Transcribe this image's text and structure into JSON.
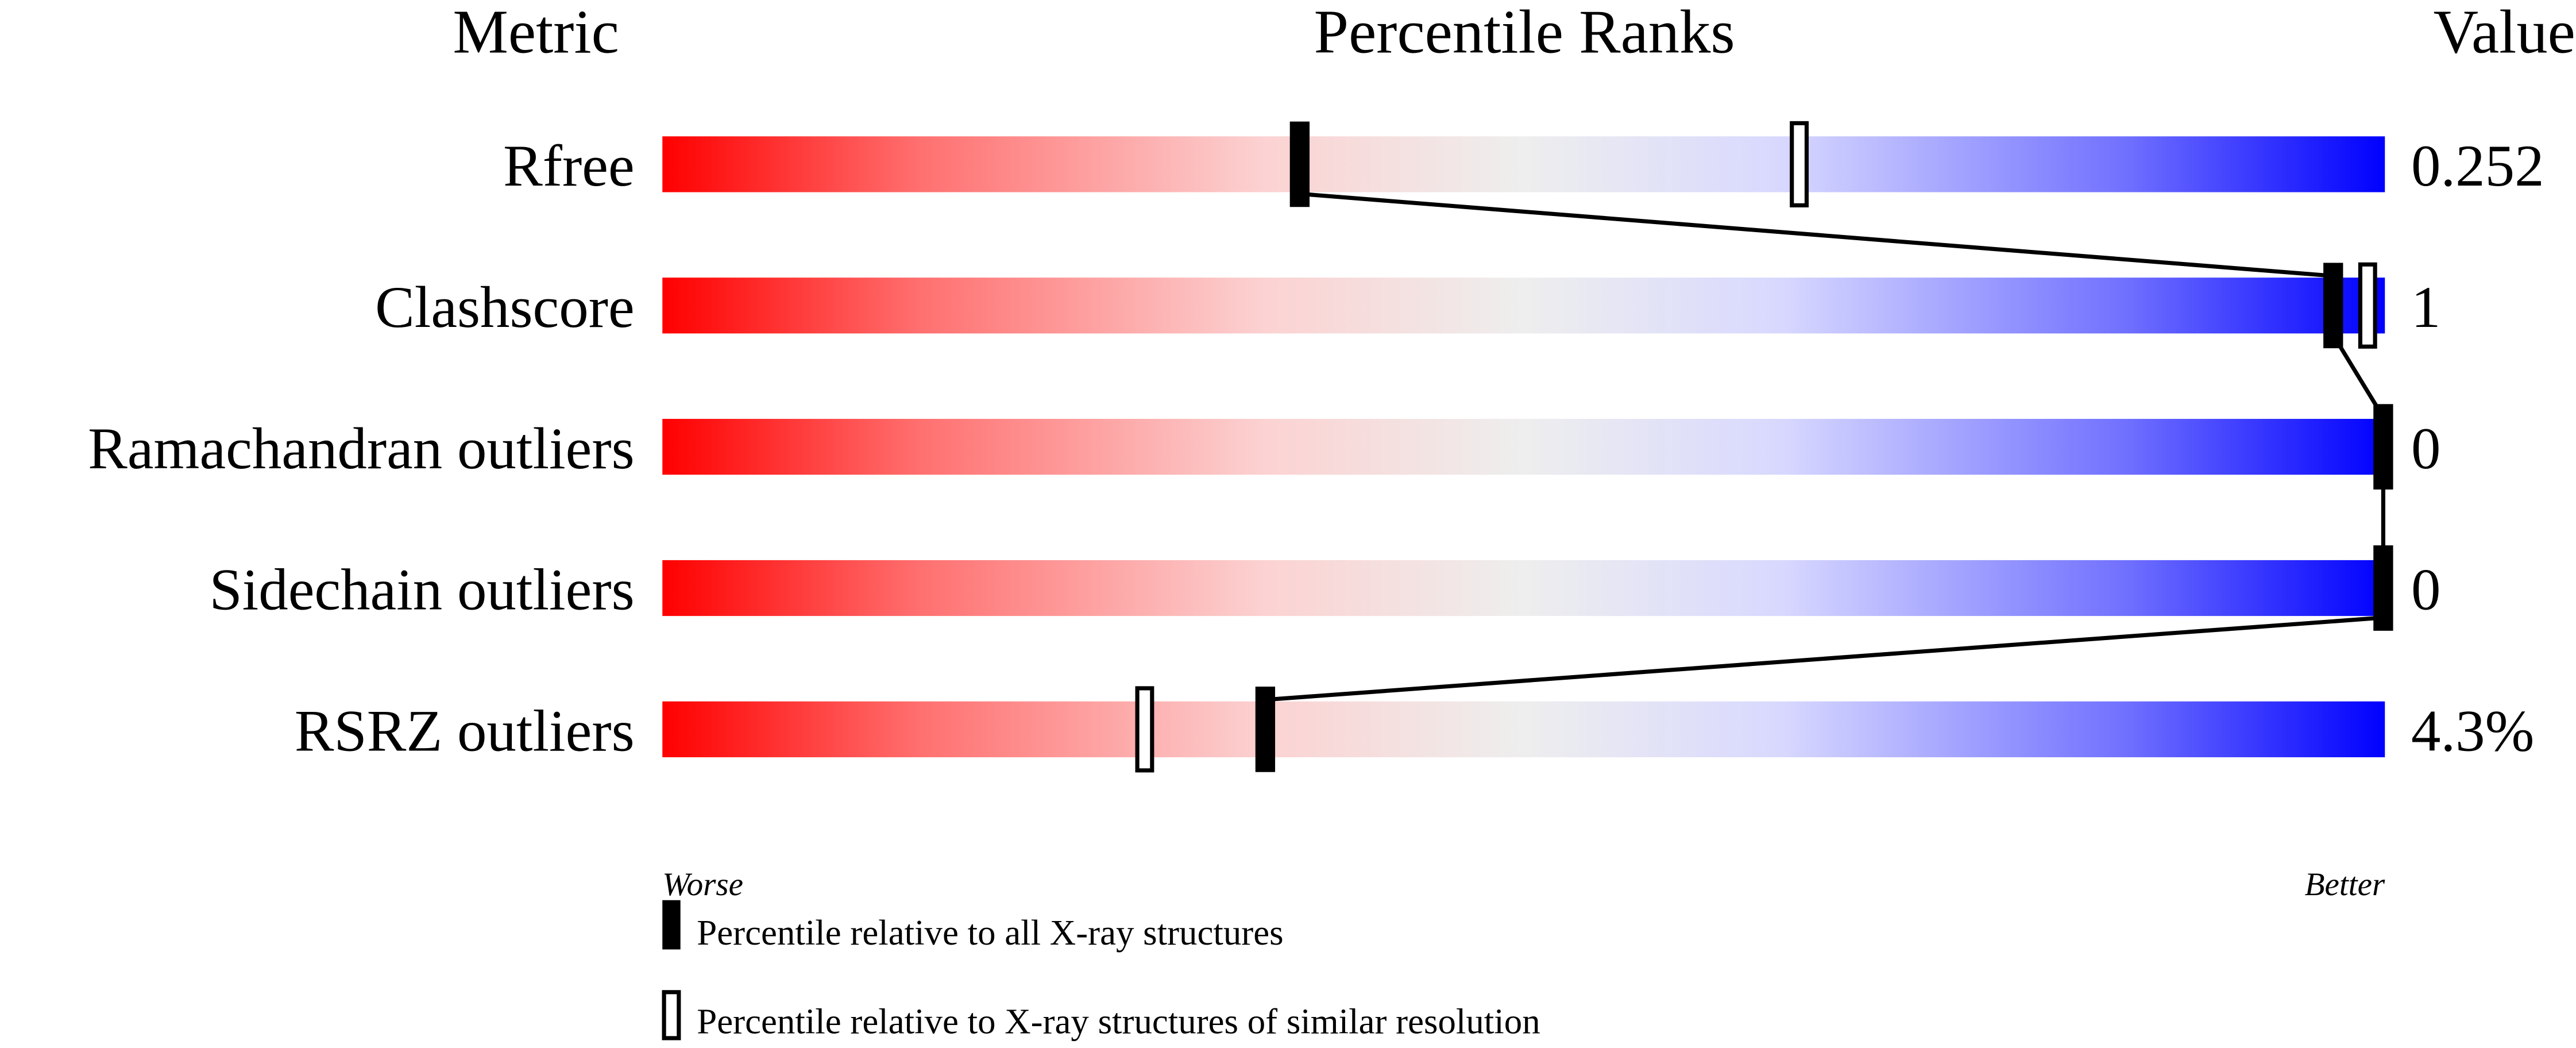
{
  "chart_data": {
    "type": "percentile-slider",
    "headers": {
      "metric": "Metric",
      "ranks": "Percentile Ranks",
      "value": "Value"
    },
    "xlim": [
      0,
      100
    ],
    "axis_labels": {
      "left": "Worse",
      "right": "Better"
    },
    "colors": {
      "worse": "#ff0000",
      "middle": "#eeeeee",
      "better": "#0000ff",
      "marker": "#000000"
    },
    "rows": [
      {
        "metric": "Rfree",
        "value": "0.252",
        "percentile_all": 37,
        "percentile_similar": 66
      },
      {
        "metric": "Clashscore",
        "value": "1",
        "percentile_all": 97,
        "percentile_similar": 99
      },
      {
        "metric": "Ramachandran outliers",
        "value": "0",
        "percentile_all": 100,
        "percentile_similar": 100
      },
      {
        "metric": "Sidechain outliers",
        "value": "0",
        "percentile_all": 100,
        "percentile_similar": 100
      },
      {
        "metric": "RSRZ outliers",
        "value": "4.3%",
        "percentile_all": 35,
        "percentile_similar": 28
      }
    ],
    "legend": [
      {
        "marker": "filled",
        "label": "Percentile relative to all X-ray structures"
      },
      {
        "marker": "open",
        "label": "Percentile relative to X-ray structures of similar resolution"
      }
    ]
  }
}
